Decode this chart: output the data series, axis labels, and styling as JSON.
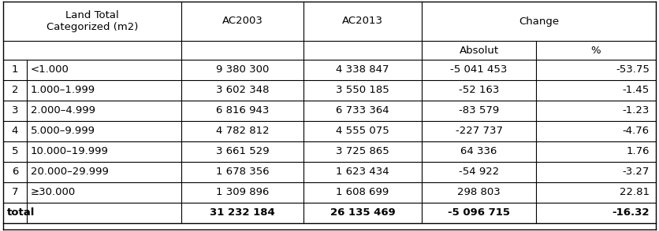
{
  "rows": [
    [
      "1",
      "<1.000",
      "9 380 300",
      "4 338 847",
      "-5 041 453",
      "-53.75"
    ],
    [
      "2",
      "1.000–1.999",
      "3 602 348",
      "3 550 185",
      "-52 163",
      "-1.45"
    ],
    [
      "3",
      "2.000–4.999",
      "6 816 943",
      "6 733 364",
      "-83 579",
      "-1.23"
    ],
    [
      "4",
      "5.000–9.999",
      "4 782 812",
      "4 555 075",
      "-227 737",
      "-4.76"
    ],
    [
      "5",
      "10.000–19.999",
      "3 661 529",
      "3 725 865",
      "64 336",
      "1.76"
    ],
    [
      "6",
      "20.000–29.999",
      "1 678 356",
      "1 623 434",
      "-54 922",
      "-3.27"
    ],
    [
      "7",
      "≥30.000",
      "1 309 896",
      "1 608 699",
      "298 803",
      "22.81"
    ]
  ],
  "total_row": [
    "total",
    "",
    "31 232 184",
    "26 135 469",
    "-5 096 715",
    "-16.32"
  ],
  "bg": "#ffffff",
  "lc": "#000000",
  "fs": 9.5
}
